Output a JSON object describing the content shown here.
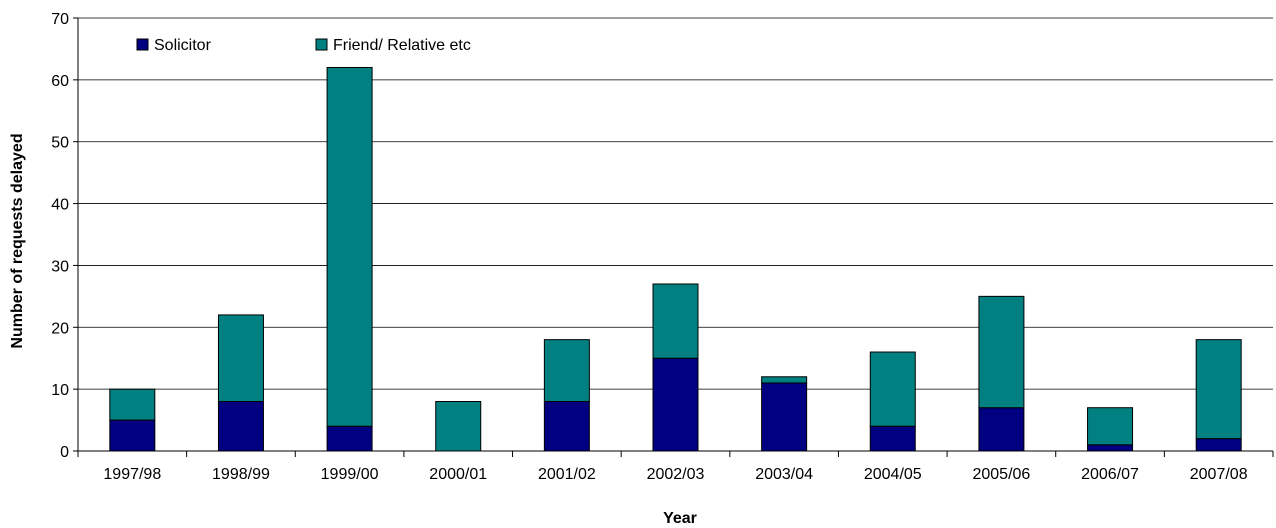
{
  "chart_data": {
    "type": "bar",
    "stacked": true,
    "title": "",
    "xlabel": "Year",
    "ylabel": "Number of requests delayed",
    "categories": [
      "1997/98",
      "1998/99",
      "1999/00",
      "2000/01",
      "2001/02",
      "2002/03",
      "2003/04",
      "2004/05",
      "2005/06",
      "2006/07",
      "2007/08"
    ],
    "series": [
      {
        "name": "Solicitor",
        "color": "#000080",
        "values": [
          5,
          8,
          4,
          0,
          8,
          15,
          11,
          4,
          7,
          1,
          2
        ]
      },
      {
        "name": "Friend/ Relative etc",
        "color": "#008080",
        "values": [
          5,
          14,
          58,
          8,
          10,
          12,
          1,
          12,
          18,
          6,
          16
        ]
      }
    ],
    "ylim": [
      0,
      70
    ],
    "yticks": [
      0,
      10,
      20,
      30,
      40,
      50,
      60,
      70
    ],
    "grid": true,
    "legend_position": "top-left"
  }
}
